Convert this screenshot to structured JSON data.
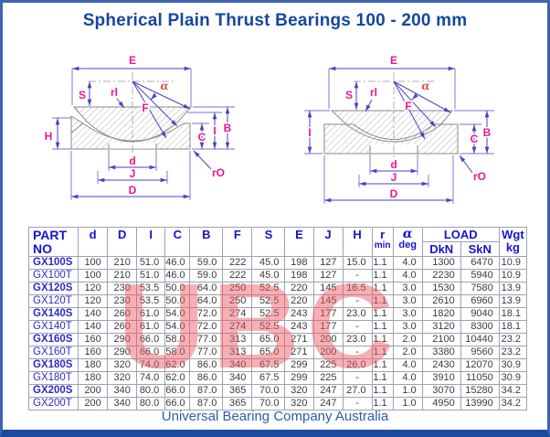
{
  "page": {
    "title": "Spherical Plain Thrust Bearings 100 - 200 mm",
    "footer": "Universal Bearing Company Australia",
    "watermark": "UBC"
  },
  "colors": {
    "title_blue": "#15489c",
    "header_blue": "#1414cc",
    "dim_line_blue": "#4545c5",
    "label_magenta": "#f0148c",
    "watermark_pink": "rgba(236,88,96,0.48)",
    "frame_blue": "#3d64b0"
  },
  "diagram_labels": {
    "E": "E",
    "S": "S",
    "rl": "rl",
    "alpha": "α",
    "F": "F",
    "H": "H",
    "I": "I",
    "C": "C",
    "B": "B",
    "d": "d",
    "J": "J",
    "D": "D",
    "rO": "rO"
  },
  "table": {
    "header": {
      "part1": "PART",
      "part2": "NO",
      "d": "d",
      "D": "D",
      "I": "I",
      "C": "C",
      "B": "B",
      "F": "F",
      "S": "S",
      "E": "E",
      "J": "J",
      "H": "H",
      "r_top": "r",
      "r_bottom": "min",
      "alpha_top": "α",
      "alpha_bottom": "deg",
      "load": "LOAD",
      "dkn": "DkN",
      "skn": "SkN",
      "wgt_top": "Wgt",
      "wgt_bottom": "kg"
    },
    "rows": [
      {
        "part": "GX100S",
        "bold": true,
        "values": [
          "100",
          "210",
          "51.0",
          "46.0",
          "59.0",
          "222",
          "45.0",
          "198",
          "127",
          "15.0",
          "1.1",
          "4.0",
          "1300",
          "6470",
          "10.9"
        ]
      },
      {
        "part": "GX100T",
        "bold": false,
        "values": [
          "100",
          "210",
          "51.0",
          "46.0",
          "59.0",
          "222",
          "45.0",
          "198",
          "127",
          "-",
          "1.1",
          "4.0",
          "2230",
          "5940",
          "10.9"
        ]
      },
      {
        "part": "GX120S",
        "bold": true,
        "values": [
          "120",
          "230",
          "53.5",
          "50.0",
          "64.0",
          "250",
          "52.5",
          "220",
          "145",
          "16.5",
          "1.1",
          "3.0",
          "1530",
          "7580",
          "13.9"
        ]
      },
      {
        "part": "GX120T",
        "bold": false,
        "values": [
          "120",
          "230",
          "53.5",
          "50.0",
          "64.0",
          "250",
          "52.5",
          "220",
          "145",
          "-",
          "1.1",
          "3.0",
          "2610",
          "6960",
          "13.9"
        ]
      },
      {
        "part": "GX140S",
        "bold": true,
        "values": [
          "140",
          "260",
          "61.0",
          "54.0",
          "72.0",
          "274",
          "52.5",
          "243",
          "177",
          "23.0",
          "1.1",
          "3.0",
          "1820",
          "9040",
          "18.1"
        ]
      },
      {
        "part": "GX140T",
        "bold": false,
        "values": [
          "140",
          "260",
          "61.0",
          "54.0",
          "72.0",
          "274",
          "52.5",
          "243",
          "177",
          "-",
          "1.1",
          "3.0",
          "3120",
          "8300",
          "18.1"
        ]
      },
      {
        "part": "GX160S",
        "bold": true,
        "values": [
          "160",
          "290",
          "66.0",
          "58.0",
          "77.0",
          "313",
          "65.0",
          "271",
          "200",
          "23.0",
          "1.1",
          "2.0",
          "2100",
          "10440",
          "23.2"
        ]
      },
      {
        "part": "GX160T",
        "bold": false,
        "values": [
          "160",
          "290",
          "66.0",
          "58.0",
          "77.0",
          "313",
          "65.0",
          "271",
          "200",
          "-",
          "1.1",
          "2.0",
          "3380",
          "9560",
          "23.2"
        ]
      },
      {
        "part": "GX180S",
        "bold": true,
        "values": [
          "180",
          "320",
          "74.0",
          "62.0",
          "86.0",
          "340",
          "67.5",
          "299",
          "225",
          "26.0",
          "1.1",
          "4.0",
          "2430",
          "12070",
          "30.9"
        ]
      },
      {
        "part": "GX180T",
        "bold": false,
        "values": [
          "180",
          "320",
          "74.0",
          "62.0",
          "86.0",
          "340",
          "67.5",
          "299",
          "225",
          "-",
          "1.1",
          "4.0",
          "3910",
          "11050",
          "30.9"
        ]
      },
      {
        "part": "GX200S",
        "bold": true,
        "values": [
          "200",
          "340",
          "80.0",
          "66.0",
          "87.0",
          "365",
          "70.0",
          "320",
          "247",
          "27.0",
          "1.1",
          "1.0",
          "3070",
          "15280",
          "34.2"
        ]
      },
      {
        "part": "GX200T",
        "bold": false,
        "values": [
          "200",
          "340",
          "80.0",
          "66.0",
          "87.0",
          "365",
          "70.0",
          "320",
          "247",
          "-",
          "1.1",
          "1.0",
          "4950",
          "13990",
          "34.2"
        ]
      }
    ]
  }
}
